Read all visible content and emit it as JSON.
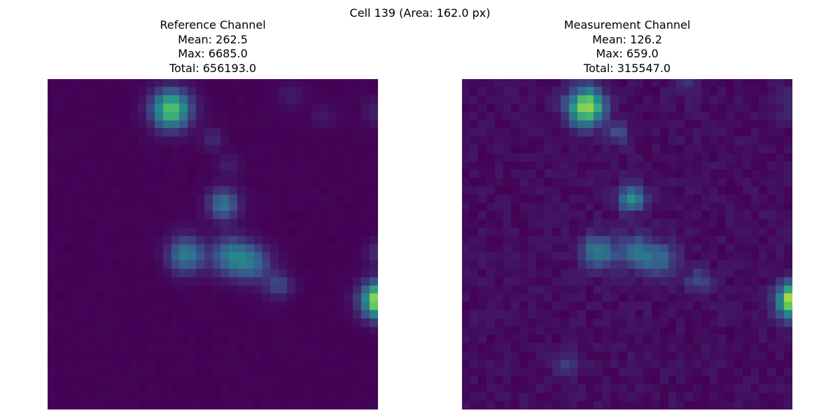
{
  "figure": {
    "suptitle": "Cell 139 (Area: 162.0 px)"
  },
  "panels": [
    {
      "title": "Reference Channel",
      "mean_label": "Mean: 262.5",
      "max_label": "Max: 6685.0",
      "total_label": "Total: 656193.0"
    },
    {
      "title": "Measurement Channel",
      "mean_label": "Mean: 126.2",
      "max_label": "Max: 659.0",
      "total_label": "Total: 315547.0"
    }
  ],
  "colormap": "viridis",
  "colors": {
    "background": "#440154",
    "mid": "#21918c",
    "high": "#fde725"
  }
}
